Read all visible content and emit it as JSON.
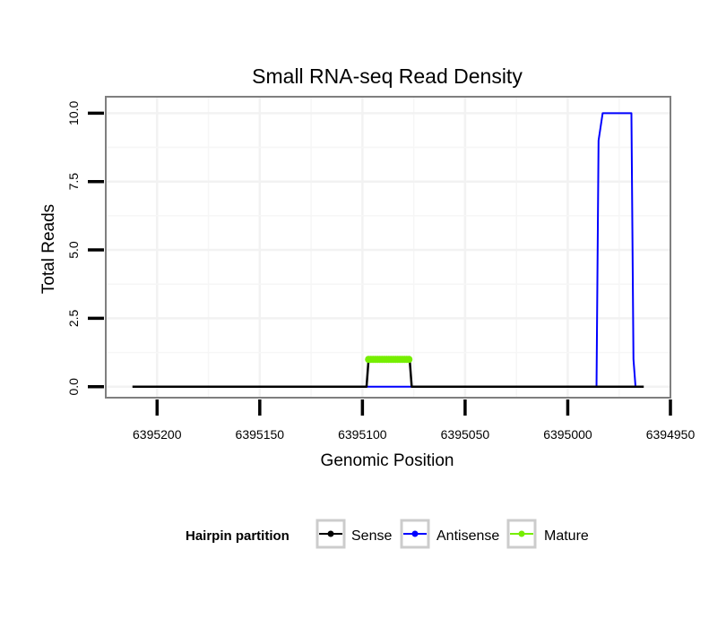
{
  "chart_data": {
    "type": "line",
    "title": "Small RNA-seq Read Density",
    "xlabel": "Genomic Position",
    "ylabel": "Total Reads",
    "xlim": [
      6395225,
      6394950
    ],
    "ylim": [
      -0.4,
      10.6
    ],
    "x_ticks": [
      6395200,
      6395150,
      6395100,
      6395050,
      6395000,
      6394950
    ],
    "x_tick_labels": [
      "6395200",
      "6395150",
      "6395100",
      "6395050",
      "6395000",
      "6394950"
    ],
    "y_ticks": [
      0,
      2.5,
      5,
      7.5,
      10
    ],
    "y_tick_labels": [
      "0.0",
      "2.5",
      "5.0",
      "7.5",
      "10.0"
    ],
    "grid": true,
    "legend": {
      "title": "Hairpin partition",
      "position": "bottom"
    },
    "series": [
      {
        "name": "Sense",
        "color": "#000000",
        "x": [
          6395212,
          6395098,
          6395097,
          6395077,
          6395076,
          6394963
        ],
        "y": [
          0,
          0,
          1,
          1,
          0,
          0
        ]
      },
      {
        "name": "Antisense",
        "color": "#0000ff",
        "x": [
          6395098,
          6395077,
          6394986,
          6394985,
          6394983,
          6394969,
          6394968,
          6394967
        ],
        "y": [
          0,
          0,
          0,
          9,
          10,
          10,
          1,
          0
        ]
      },
      {
        "name": "Mature",
        "color": "#76ee00",
        "x": [
          6395097,
          6395077
        ],
        "y": [
          1,
          1
        ]
      }
    ]
  }
}
